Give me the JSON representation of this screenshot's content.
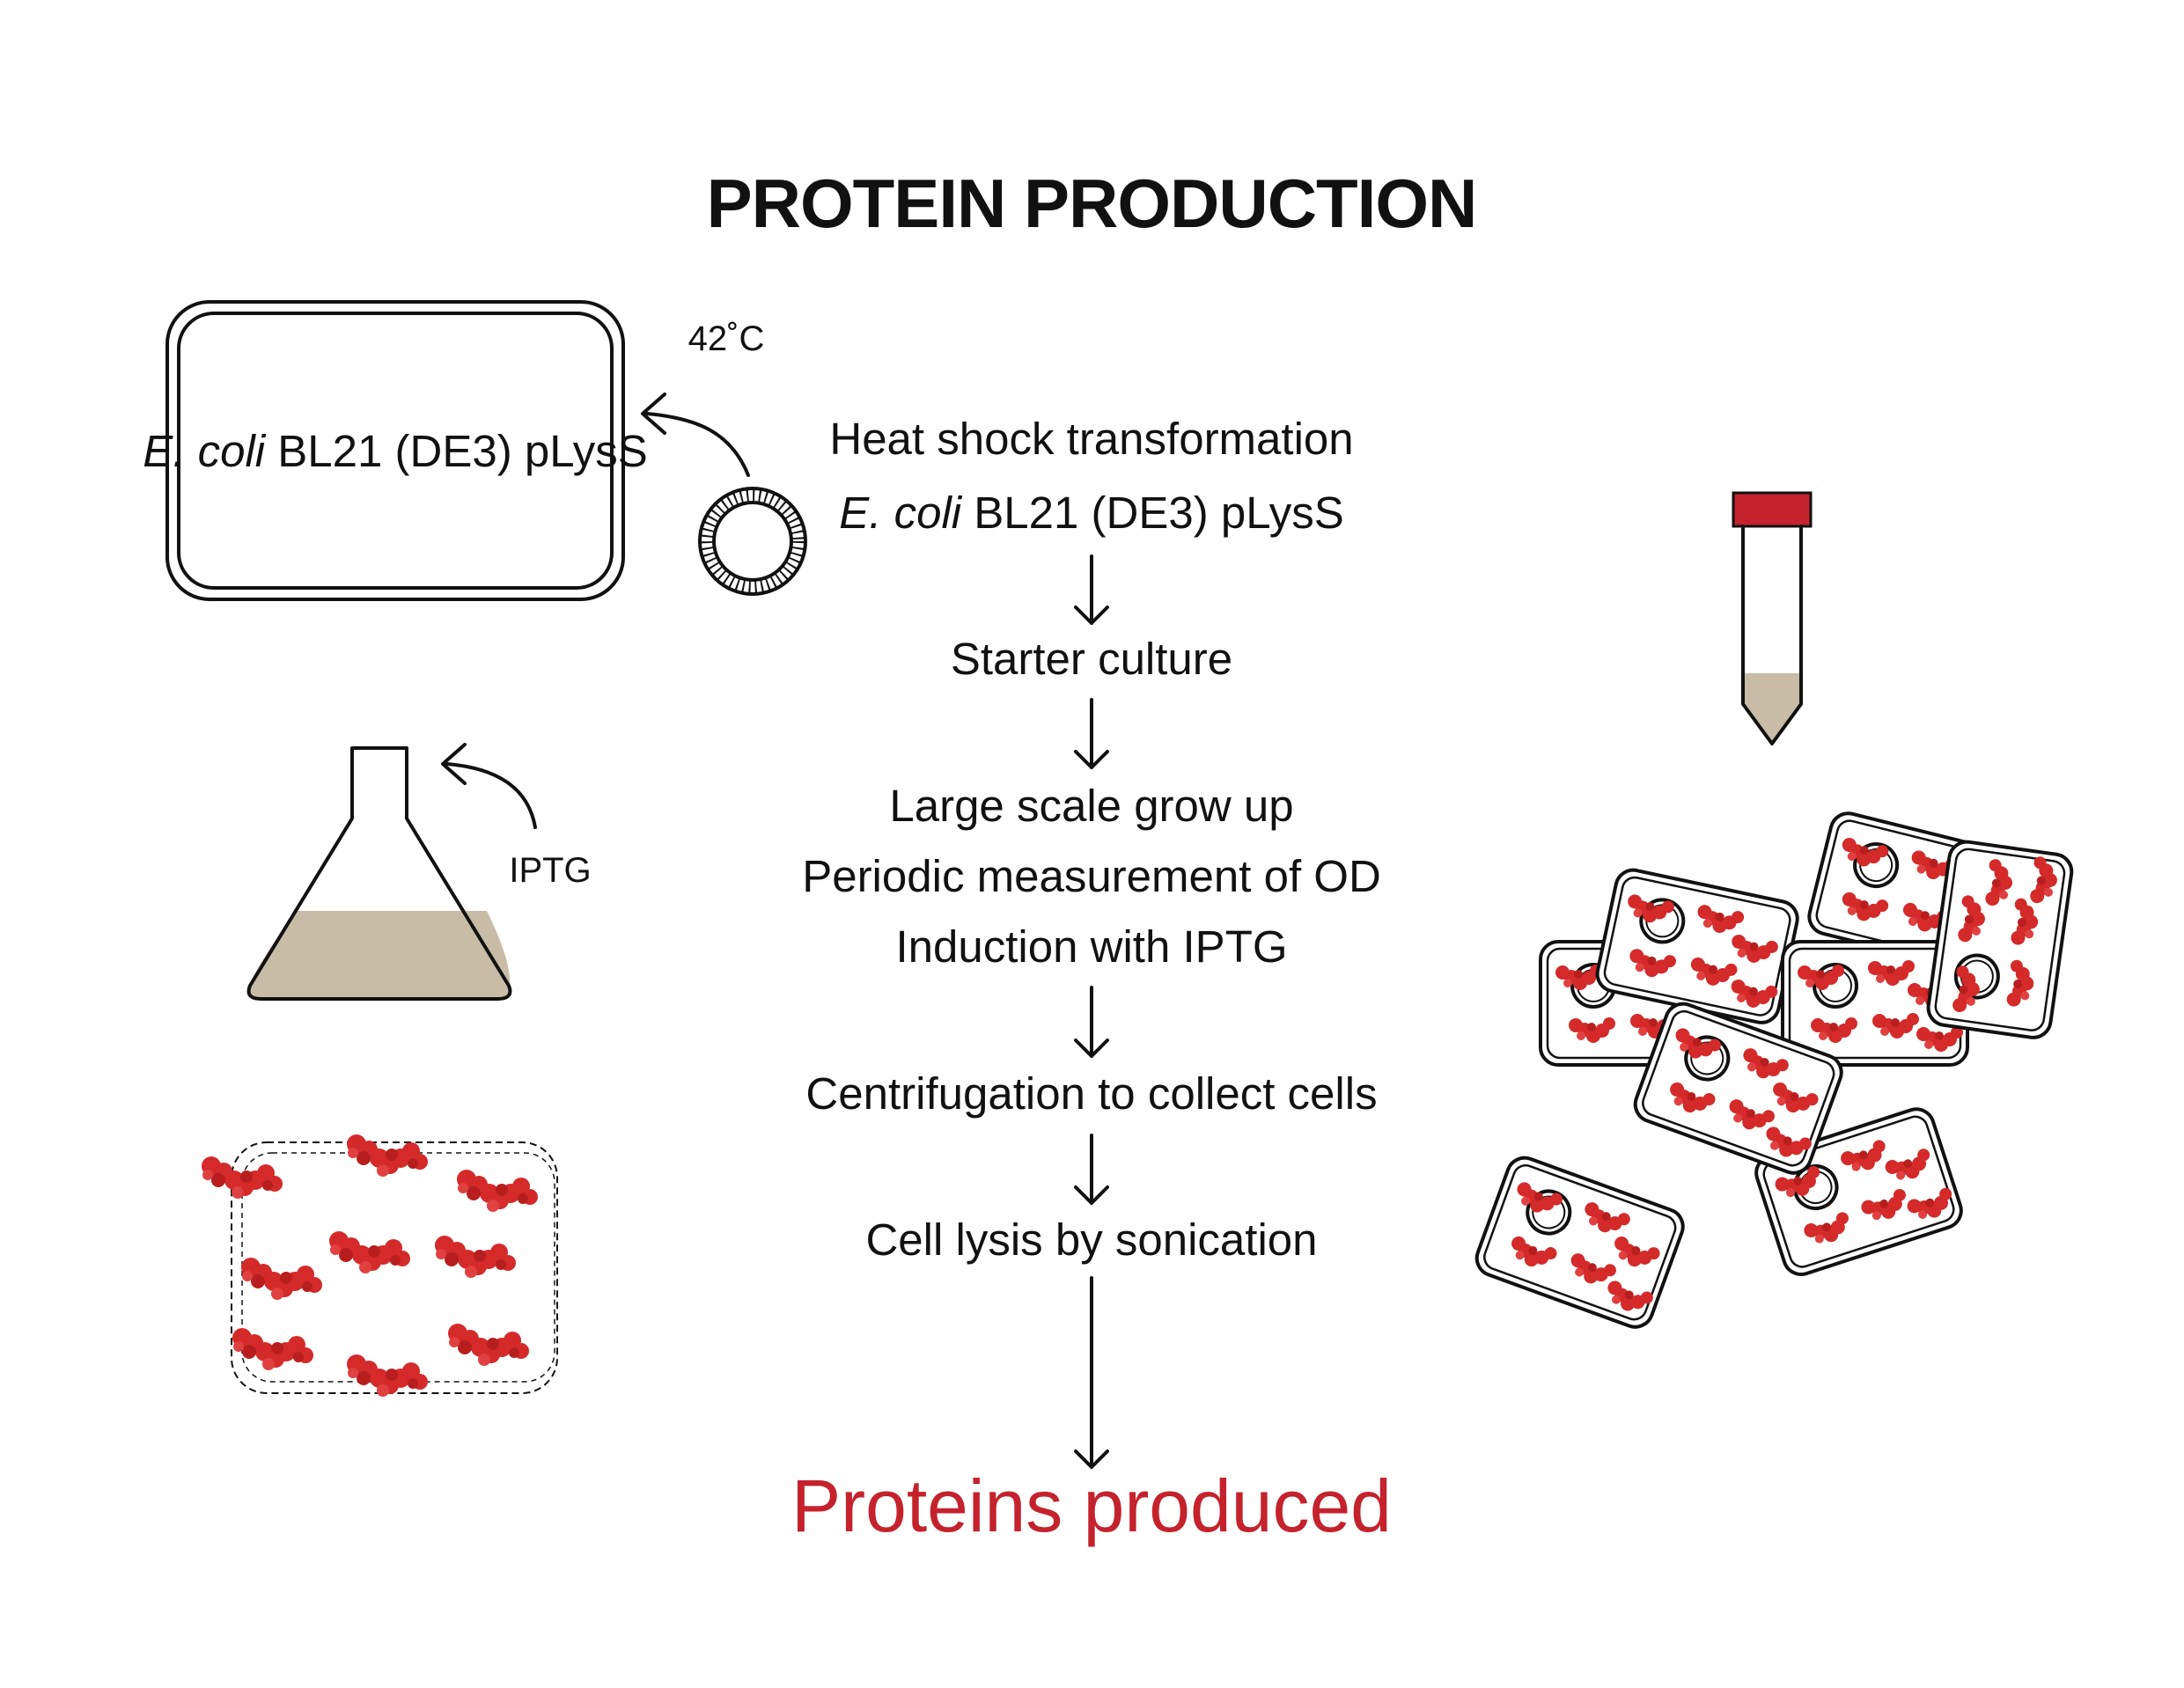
{
  "title": "PROTEIN PRODUCTION",
  "plate": {
    "label_italic": "E. coli",
    "label_rest": " BL21 (DE3) pLysS"
  },
  "temperature": "42˚C",
  "inducer": "IPTG",
  "steps": [
    {
      "italic": "",
      "text": "Heat shock transformation"
    },
    {
      "italic": "E. coli",
      "text": " BL21 (DE3) pLysS"
    },
    {
      "italic": "",
      "text": "Starter culture"
    },
    {
      "italic": "",
      "text": "Large scale grow up"
    },
    {
      "italic": "",
      "text": "Periodic measurement of OD"
    },
    {
      "italic": "",
      "text": "Induction with IPTG"
    },
    {
      "italic": "",
      "text": "Centrifugation to collect cells"
    },
    {
      "italic": "",
      "text": "Cell lysis by sonication"
    }
  ],
  "result": "Proteins produced",
  "colors": {
    "protein": "#d42a2a",
    "culture": "#c8bca6",
    "cap": "#c4222c",
    "result_text": "#c4222c",
    "line": "#111111"
  },
  "icons": [
    "petri-plate-icon",
    "plasmid-icon",
    "flask-icon",
    "falcon-tube-icon",
    "cell-pellet-icon",
    "lysate-icon"
  ]
}
